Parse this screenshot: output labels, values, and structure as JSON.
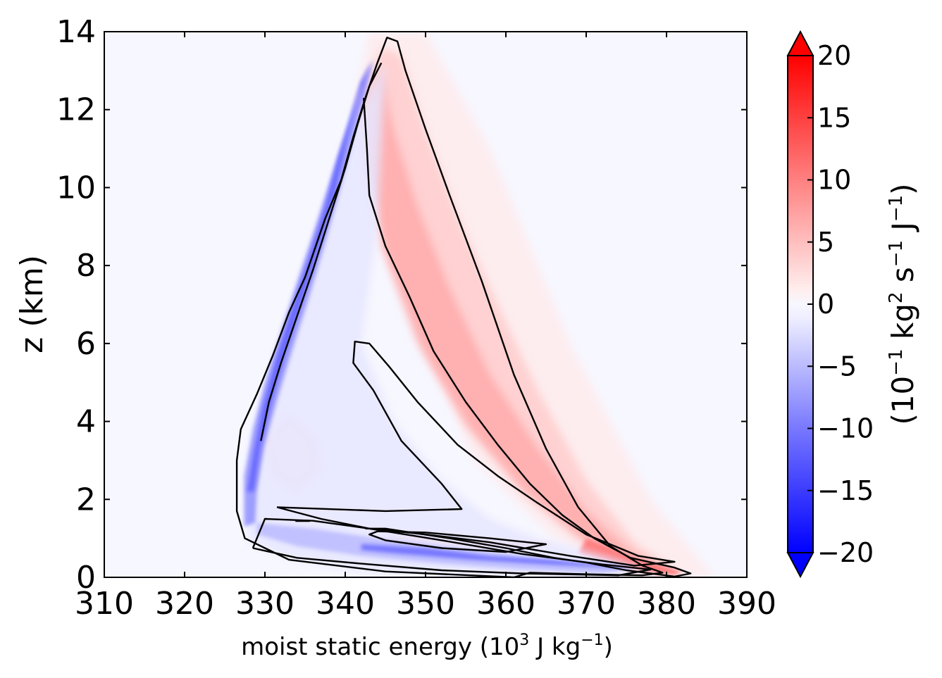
{
  "chart_data": {
    "type": "heatmap",
    "xlabel": {
      "text": "moist static energy (10",
      "sup1": "3",
      "mid": " J kg",
      "sup2": "−1",
      "end": ")"
    },
    "ylabel": "z (km)",
    "xlim": [
      310,
      390
    ],
    "ylim": [
      0,
      14
    ],
    "x_ticks": [
      "310",
      "320",
      "330",
      "340",
      "350",
      "360",
      "370",
      "380",
      "390"
    ],
    "y_ticks": [
      "0",
      "2",
      "4",
      "6",
      "8",
      "10",
      "12",
      "14"
    ],
    "colorbar": {
      "range": [
        -20,
        20
      ],
      "extend": "both",
      "colormap": "bwr",
      "ticks": [
        "−20",
        "−15",
        "−10",
        "−5",
        "0",
        "5",
        "10",
        "15",
        "20"
      ],
      "label": {
        "open": "(10",
        "sup1": "−1",
        "mid1": " kg",
        "sup2": "2",
        "mid2": " s",
        "sup3": "−1",
        "mid3": " J",
        "sup4": "−1",
        "close": ")"
      }
    },
    "colors": {
      "negative": "#0000ff",
      "neutral": "#f7f7ff",
      "positive": "#ff0000",
      "contour": "#000000"
    },
    "contours": [
      {
        "name": "outer",
        "points": [
          [
            361,
            0
          ],
          [
            345,
            0.15
          ],
          [
            333,
            0.45
          ],
          [
            327.5,
            1.0
          ],
          [
            326.5,
            1.7
          ],
          [
            326.5,
            3.0
          ],
          [
            327,
            3.8
          ],
          [
            329,
            4.7
          ],
          [
            331,
            5.7
          ],
          [
            333,
            6.8
          ],
          [
            335,
            7.7
          ],
          [
            337.5,
            9.2
          ],
          [
            339.5,
            10.2
          ],
          [
            341,
            11.3
          ],
          [
            342.5,
            12.3
          ],
          [
            344,
            13.2
          ],
          [
            345.2,
            13.85
          ],
          [
            346.5,
            13.75
          ],
          [
            347.5,
            13.0
          ],
          [
            350,
            11.5
          ],
          [
            353,
            9.8
          ],
          [
            357,
            7.6
          ],
          [
            361,
            5.2
          ],
          [
            365,
            3.3
          ],
          [
            369,
            1.8
          ],
          [
            373,
            0.8
          ],
          [
            377,
            0.3
          ],
          [
            379.5,
            0.12
          ],
          [
            377,
            0.05
          ],
          [
            370,
            0.08
          ],
          [
            363,
            0.12
          ],
          [
            361,
            0
          ]
        ]
      },
      {
        "name": "cold-inner-edge",
        "points": [
          [
            329.5,
            3.5
          ],
          [
            330.5,
            4.5
          ],
          [
            332,
            5.5
          ],
          [
            334,
            6.7
          ],
          [
            336,
            7.9
          ],
          [
            338,
            9.2
          ],
          [
            340,
            10.5
          ],
          [
            341.5,
            11.6
          ],
          [
            343,
            12.6
          ],
          [
            344.5,
            13.2
          ]
        ]
      },
      {
        "name": "cold-lower-hook",
        "points": [
          [
            328.5,
            0.75
          ],
          [
            334,
            0.5
          ],
          [
            342,
            0.35
          ],
          [
            352,
            0.18
          ],
          [
            362,
            0.1
          ],
          [
            374,
            0.05
          ],
          [
            378,
            0.2
          ],
          [
            372,
            0.33
          ],
          [
            362,
            0.6
          ],
          [
            352,
            0.95
          ],
          [
            343,
            1.25
          ],
          [
            336,
            1.45
          ],
          [
            330,
            1.5
          ],
          [
            328.5,
            0.75
          ]
        ]
      },
      {
        "name": "pocket-middle",
        "points": [
          [
            331.5,
            1.8
          ],
          [
            345,
            1.7
          ],
          [
            354.5,
            1.75
          ],
          [
            352,
            2.4
          ],
          [
            347,
            3.5
          ],
          [
            343.5,
            4.8
          ],
          [
            341,
            5.5
          ],
          [
            341.2,
            6.05
          ],
          [
            343,
            6.0
          ],
          [
            345.5,
            5.4
          ],
          [
            349,
            4.5
          ],
          [
            354,
            3.4
          ],
          [
            359,
            2.6
          ],
          [
            364,
            1.9
          ],
          [
            370,
            1.1
          ],
          [
            376.5,
            0.55
          ],
          [
            381,
            0.4
          ],
          [
            376,
            0.3
          ],
          [
            368,
            0.55
          ],
          [
            358,
            0.9
          ],
          [
            350,
            1.1
          ],
          [
            343,
            1.25
          ],
          [
            337,
            1.5
          ],
          [
            331.5,
            1.8
          ]
        ]
      },
      {
        "name": "warm-middle",
        "points": [
          [
            342.3,
            12.3
          ],
          [
            342.7,
            11.0
          ],
          [
            343,
            9.8
          ],
          [
            345,
            8.5
          ],
          [
            348,
            7.2
          ],
          [
            351,
            5.8
          ],
          [
            355,
            4.5
          ],
          [
            359,
            3.4
          ],
          [
            363,
            2.4
          ],
          [
            367,
            1.6
          ],
          [
            371,
            1.0
          ],
          [
            375.5,
            0.5
          ],
          [
            381,
            0.25
          ],
          [
            383,
            0.1
          ],
          [
            381,
            0.02
          ],
          [
            375,
            0.18
          ],
          [
            370,
            0.38
          ],
          [
            366,
            0.5
          ],
          [
            360,
            0.75
          ],
          [
            353,
            1.0
          ],
          [
            345,
            1.25
          ],
          [
            342.5,
            1.25
          ]
        ]
      },
      {
        "name": "warm-lowest-lobe",
        "points": [
          [
            344,
            1.18
          ],
          [
            350,
            1.15
          ],
          [
            358,
            1.0
          ],
          [
            365,
            0.85
          ],
          [
            360,
            0.65
          ],
          [
            352,
            0.75
          ],
          [
            345,
            0.95
          ],
          [
            343,
            1.1
          ],
          [
            344,
            1.18
          ]
        ]
      }
    ]
  }
}
